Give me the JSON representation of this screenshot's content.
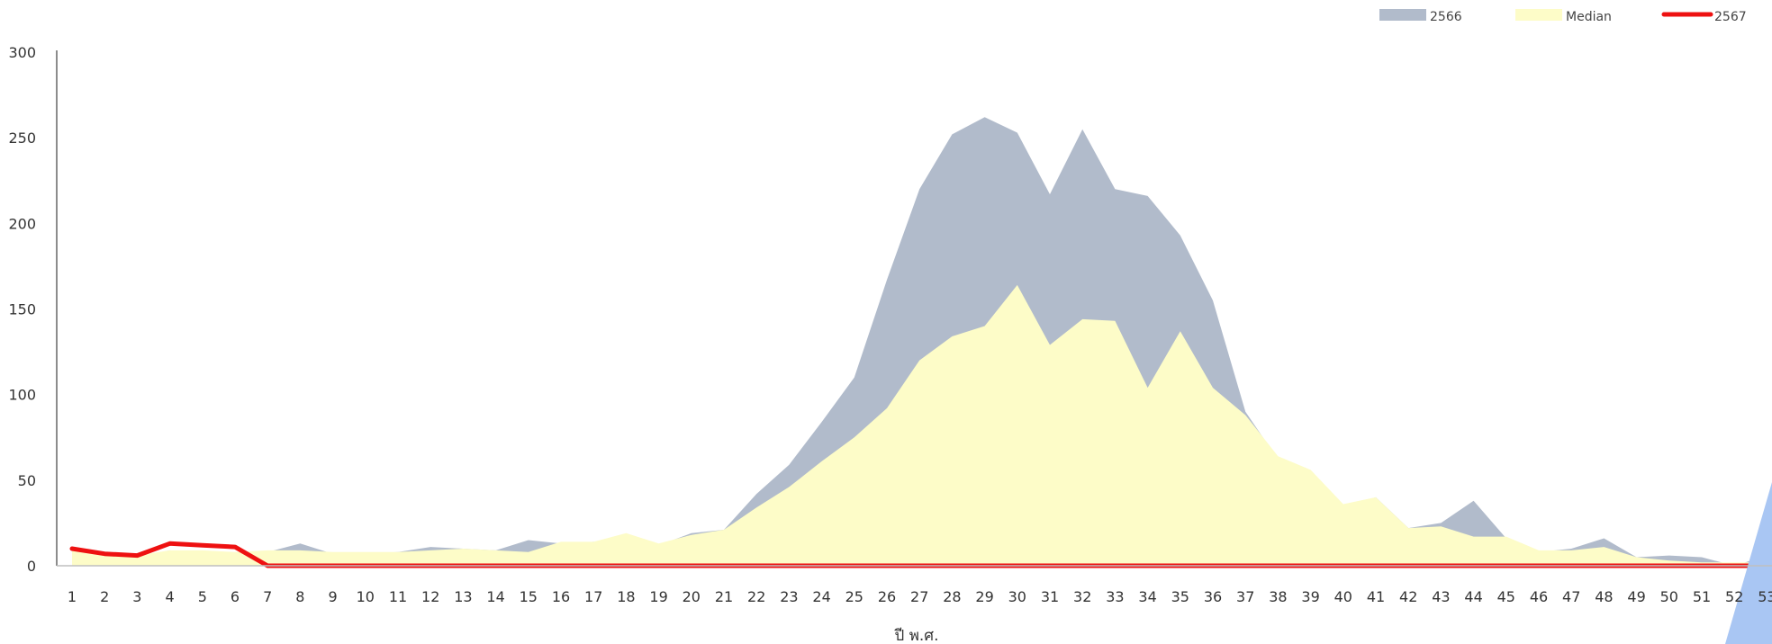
{
  "chart_data": {
    "type": "area",
    "title": "",
    "xlabel": "ปี พ.ศ.",
    "ylabel": "",
    "ylim": [
      0,
      300
    ],
    "yticks": [
      0,
      50,
      100,
      150,
      200,
      250,
      300
    ],
    "categories": [
      "1",
      "2",
      "3",
      "4",
      "5",
      "6",
      "7",
      "8",
      "9",
      "10",
      "11",
      "12",
      "13",
      "14",
      "15",
      "16",
      "17",
      "18",
      "19",
      "20",
      "21",
      "22",
      "23",
      "24",
      "25",
      "26",
      "27",
      "28",
      "29",
      "30",
      "31",
      "32",
      "33",
      "34",
      "35",
      "36",
      "37",
      "38",
      "39",
      "40",
      "41",
      "42",
      "43",
      "44",
      "45",
      "46",
      "47",
      "48",
      "49",
      "50",
      "51",
      "52",
      "53"
    ],
    "legend_position": "top-right",
    "grid": false,
    "series": [
      {
        "name": "2566",
        "kind": "area",
        "color": "#b1bbcb",
        "values": [
          8,
          7,
          5,
          9,
          7,
          6,
          8,
          13,
          7,
          7,
          8,
          11,
          10,
          9,
          15,
          13,
          14,
          14,
          12,
          19,
          21,
          42,
          59,
          84,
          110,
          167,
          220,
          252,
          262,
          253,
          217,
          255,
          220,
          216,
          193,
          155,
          90,
          62,
          55,
          34,
          40,
          22,
          25,
          38,
          16,
          8,
          10,
          16,
          5,
          6,
          5,
          0,
          6
        ]
      },
      {
        "name": "Median",
        "kind": "area",
        "color": "#fdfcc8",
        "values": [
          9,
          7,
          6,
          9,
          9,
          8,
          9,
          9,
          8,
          8,
          8,
          9,
          10,
          9,
          8,
          14,
          14,
          19,
          13,
          18,
          21,
          34,
          46,
          61,
          75,
          92,
          120,
          134,
          140,
          164,
          129,
          144,
          143,
          104,
          137,
          104,
          88,
          64,
          56,
          36,
          40,
          22,
          23,
          17,
          17,
          9,
          9,
          11,
          5,
          3,
          2,
          2,
          2
        ]
      },
      {
        "name": "2567",
        "kind": "line",
        "color": "#ee1111",
        "values": [
          10,
          7,
          6,
          13,
          12,
          11,
          0,
          0,
          0,
          0,
          0,
          0,
          0,
          0,
          0,
          0,
          0,
          0,
          0,
          0,
          0,
          0,
          0,
          0,
          0,
          0,
          0,
          0,
          0,
          0,
          0,
          0,
          0,
          0,
          0,
          0,
          0,
          0,
          0,
          0,
          0,
          0,
          0,
          0,
          0,
          0,
          0,
          0,
          0,
          0,
          0,
          0,
          0
        ]
      }
    ]
  }
}
